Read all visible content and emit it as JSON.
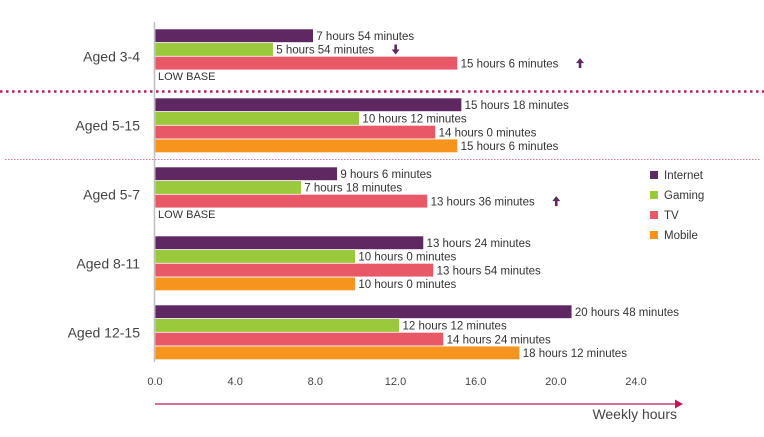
{
  "chart_data": {
    "type": "bar",
    "orientation": "horizontal",
    "xlabel": "Weekly hours",
    "xlim": [
      0,
      24
    ],
    "xticks": [
      "0.0",
      "4.0",
      "8.0",
      "12.0",
      "16.0",
      "20.0",
      "24.0"
    ],
    "legend_position": "right",
    "series": [
      {
        "name": "Internet",
        "color": "#5f2862"
      },
      {
        "name": "Gaming",
        "color": "#9bc93c"
      },
      {
        "name": "TV",
        "color": "#e85867"
      },
      {
        "name": "Mobile",
        "color": "#f7941d"
      }
    ],
    "groups": [
      {
        "label": "Aged 3-4",
        "note": "LOW BASE",
        "bars": [
          {
            "series": "Internet",
            "value": 7.9,
            "label": "7 hours 54 minutes",
            "arrow": ""
          },
          {
            "series": "Gaming",
            "value": 5.9,
            "label": "5 hours 54 minutes",
            "arrow": "down"
          },
          {
            "series": "TV",
            "value": 15.1,
            "label": "15 hours 6 minutes",
            "arrow": "up"
          }
        ]
      },
      {
        "label": "Aged 5-15",
        "note": "",
        "bars": [
          {
            "series": "Internet",
            "value": 15.3,
            "label": "15 hours 18 minutes",
            "arrow": ""
          },
          {
            "series": "Gaming",
            "value": 10.2,
            "label": "10 hours 12 minutes",
            "arrow": ""
          },
          {
            "series": "TV",
            "value": 14.0,
            "label": "14 hours 0 minutes",
            "arrow": ""
          },
          {
            "series": "Mobile",
            "value": 15.1,
            "label": "15 hours 6 minutes",
            "arrow": ""
          }
        ]
      },
      {
        "label": "Aged 5-7",
        "note": "LOW BASE",
        "bars": [
          {
            "series": "Internet",
            "value": 9.1,
            "label": "9 hours 6 minutes",
            "arrow": ""
          },
          {
            "series": "Gaming",
            "value": 7.3,
            "label": "7 hours 18 minutes",
            "arrow": ""
          },
          {
            "series": "TV",
            "value": 13.6,
            "label": "13 hours 36 minutes",
            "arrow": "up"
          }
        ]
      },
      {
        "label": "Aged 8-11",
        "note": "",
        "bars": [
          {
            "series": "Internet",
            "value": 13.4,
            "label": "13 hours 24 minutes",
            "arrow": ""
          },
          {
            "series": "Gaming",
            "value": 10.0,
            "label": "10 hours 0 minutes",
            "arrow": ""
          },
          {
            "series": "TV",
            "value": 13.9,
            "label": "13 hours 54 minutes",
            "arrow": ""
          },
          {
            "series": "Mobile",
            "value": 10.0,
            "label": "10 hours 0 minutes",
            "arrow": ""
          }
        ]
      },
      {
        "label": "Aged 12-15",
        "note": "",
        "bars": [
          {
            "series": "Internet",
            "value": 20.8,
            "label": "20 hours 48 minutes",
            "arrow": ""
          },
          {
            "series": "Gaming",
            "value": 12.2,
            "label": "12 hours 12 minutes",
            "arrow": ""
          },
          {
            "series": "TV",
            "value": 14.4,
            "label": "14 hours 24 minutes",
            "arrow": ""
          },
          {
            "series": "Mobile",
            "value": 18.2,
            "label": "18 hours 12 minutes",
            "arrow": ""
          }
        ]
      }
    ],
    "colors": {
      "arrow": "#5f2862",
      "axis_arrow": "#c2185b",
      "divider": "#c2185b",
      "bar_outline": "#ffffff"
    }
  }
}
